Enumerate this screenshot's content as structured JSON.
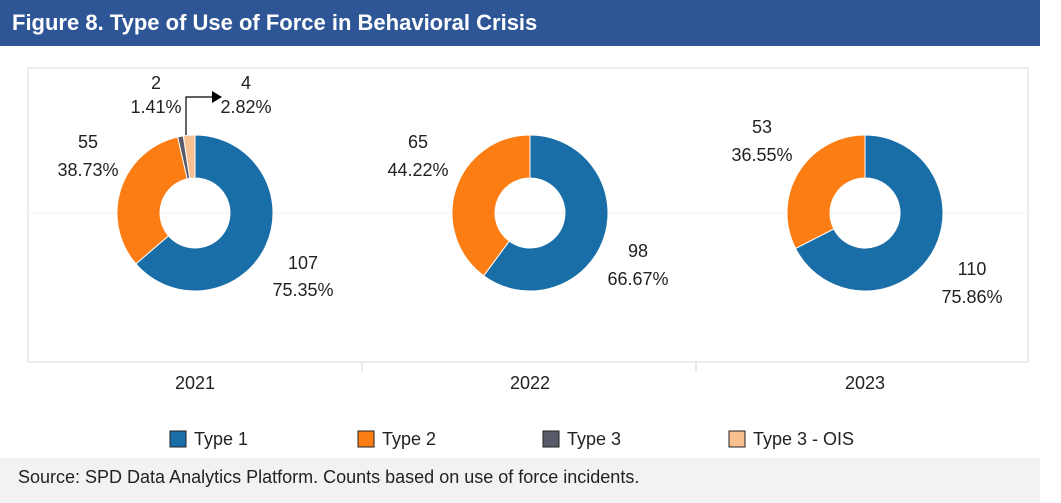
{
  "chart_data": {
    "type": "donut",
    "title": "Figure 8. Type of Use of Force in Behavioral Crisis",
    "categories": [
      "Type 1",
      "Type 2",
      "Type 3",
      "Type 3 - OIS"
    ],
    "colors": [
      "#1a6ea8",
      "#fb7d14",
      "#5a5b68",
      "#f8c08e"
    ],
    "panels": [
      {
        "label": "2021",
        "values": [
          107,
          55,
          2,
          4
        ],
        "percent_labels": [
          "75.35%",
          "38.73%",
          "1.41%",
          "2.82%"
        ]
      },
      {
        "label": "2022",
        "values": [
          98,
          65,
          null,
          null
        ],
        "percent_labels": [
          "66.67%",
          "44.22%",
          null,
          null
        ]
      },
      {
        "label": "2023",
        "values": [
          110,
          53,
          null,
          null
        ],
        "percent_labels": [
          "75.86%",
          "36.55%",
          null,
          null
        ]
      }
    ],
    "source": "Source: SPD Data Analytics Platform. Counts based on use of force incidents."
  }
}
